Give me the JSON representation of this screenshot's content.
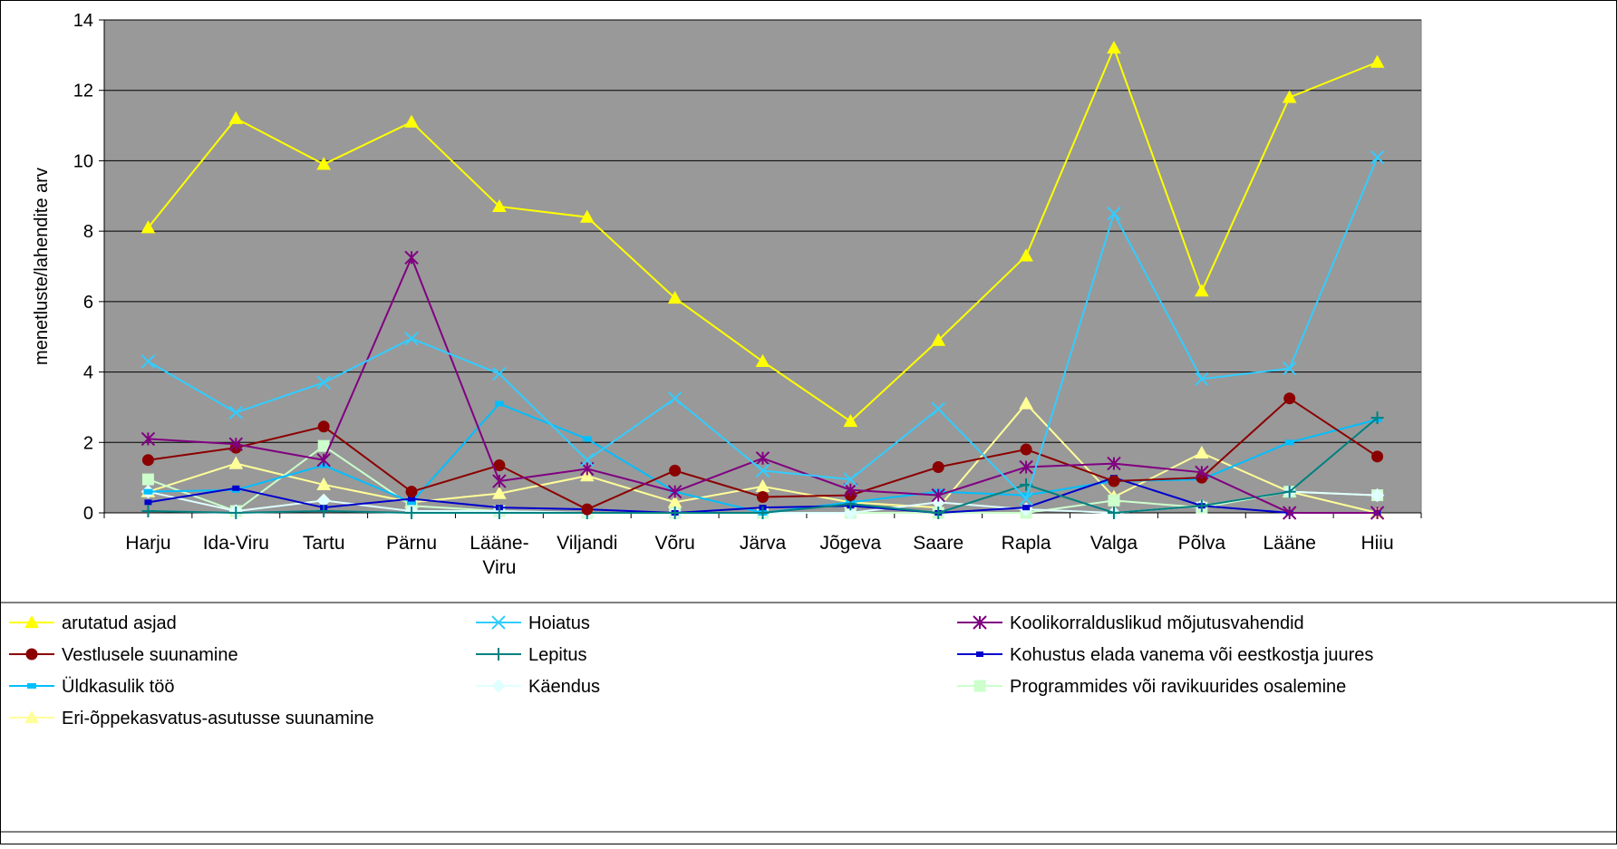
{
  "chart_data": {
    "type": "line",
    "title": "",
    "xlabel": "",
    "ylabel": "menetluste/lahendite arv",
    "ylim": [
      0,
      14
    ],
    "yticks": [
      0,
      2,
      4,
      6,
      8,
      10,
      12,
      14
    ],
    "grid": true,
    "legend_position": "bottom",
    "plot_background": "#999999",
    "categories": [
      [
        "Harju"
      ],
      [
        "Ida-Viru"
      ],
      [
        "Tartu"
      ],
      [
        "Pärnu"
      ],
      [
        "Lääne-",
        "Viru"
      ],
      [
        "Viljandi"
      ],
      [
        "Võru"
      ],
      [
        "Järva"
      ],
      [
        "Jõgeva"
      ],
      [
        "Saare"
      ],
      [
        "Rapla"
      ],
      [
        "Valga"
      ],
      [
        "Põlva"
      ],
      [
        "Lääne"
      ],
      [
        "Hiiu"
      ]
    ],
    "series": [
      {
        "name": "arutatud asjad",
        "color": "#ffff00",
        "marker": "triangle",
        "values": [
          8.1,
          11.2,
          9.9,
          11.1,
          8.7,
          8.4,
          6.1,
          4.3,
          2.6,
          4.9,
          7.3,
          13.2,
          6.3,
          11.8,
          12.8
        ]
      },
      {
        "name": "Hoiatus",
        "color": "#33ccff",
        "marker": "x",
        "values": [
          4.3,
          2.85,
          3.7,
          4.95,
          3.95,
          1.5,
          3.25,
          1.2,
          0.95,
          2.95,
          0.4,
          8.5,
          3.8,
          4.1,
          10.1
        ]
      },
      {
        "name": "Koolikorralduslikud mõjutusvahendid",
        "color": "#800080",
        "marker": "star",
        "values": [
          2.1,
          1.95,
          1.5,
          7.25,
          0.9,
          1.25,
          0.6,
          1.55,
          0.65,
          0.5,
          1.3,
          1.4,
          1.15,
          0.0,
          0.0
        ]
      },
      {
        "name": "Vestlusele suunamine",
        "color": "#8b0000",
        "marker": "circle",
        "values": [
          1.5,
          1.85,
          2.45,
          0.6,
          1.35,
          0.1,
          1.2,
          0.45,
          0.5,
          1.3,
          1.8,
          0.9,
          1.0,
          3.25,
          1.6
        ]
      },
      {
        "name": "Lepitus",
        "color": "#008080",
        "marker": "plus",
        "values": [
          0.05,
          0.0,
          0.05,
          0.0,
          0.0,
          0.0,
          0.0,
          0.0,
          0.25,
          0.0,
          0.8,
          0.0,
          0.2,
          0.6,
          2.7
        ]
      },
      {
        "name": "Kohustus elada vanema või eestkostja juures",
        "color": "#0000cc",
        "marker": "square-small",
        "values": [
          0.3,
          0.7,
          0.15,
          0.4,
          0.15,
          0.1,
          0.0,
          0.15,
          0.2,
          0.0,
          0.15,
          1.0,
          0.2,
          0.0,
          0.0
        ]
      },
      {
        "name": "Üldkasulik töö",
        "color": "#00bfff",
        "marker": "rect",
        "values": [
          0.6,
          0.65,
          1.35,
          0.3,
          3.1,
          2.1,
          0.6,
          0.0,
          0.3,
          0.6,
          0.5,
          0.9,
          0.95,
          2.0,
          2.65
        ]
      },
      {
        "name": "Käendus",
        "color": "#e0ffff",
        "marker": "diamond",
        "values": [
          0.6,
          0.05,
          0.35,
          0.05,
          0.05,
          0.0,
          0.0,
          0.0,
          0.0,
          0.3,
          0.1,
          0.0,
          0.2,
          0.6,
          0.5
        ]
      },
      {
        "name": "Programmides või ravikuurides osalemine",
        "color": "#ccffcc",
        "marker": "square",
        "values": [
          0.95,
          0.05,
          1.9,
          0.2,
          0.05,
          0.0,
          0.0,
          0.0,
          0.0,
          0.0,
          0.0,
          0.35,
          0.15,
          0.6,
          0.5
        ]
      },
      {
        "name": "Eri-õppekasvatus-asutusse suunamine",
        "color": "#ffff99",
        "marker": "triangle",
        "values": [
          0.6,
          1.4,
          0.8,
          0.3,
          0.55,
          1.05,
          0.3,
          0.75,
          0.3,
          0.15,
          3.1,
          0.45,
          1.7,
          0.6,
          0.0
        ]
      }
    ]
  }
}
